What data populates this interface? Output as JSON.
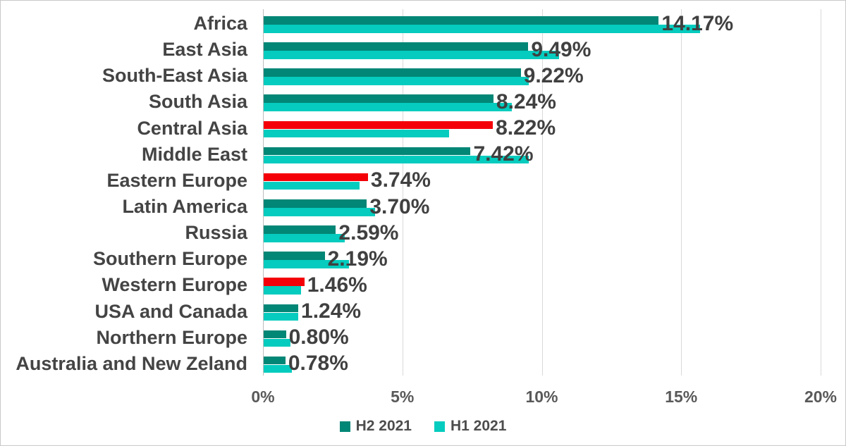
{
  "chart_data": {
    "type": "bar",
    "orientation": "horizontal",
    "title": "",
    "categories": [
      "Africa",
      "East Asia",
      "South-East Asia",
      "South Asia",
      "Central Asia",
      "Middle East",
      "Eastern Europe",
      "Latin America",
      "Russia",
      "Southern Europe",
      "Western Europe",
      "USA and Canada",
      "Northern Europe",
      "Australia and New Zeland"
    ],
    "series": [
      {
        "name": "H2 2021",
        "color": "#028676",
        "values": [
          14.17,
          9.49,
          9.22,
          8.24,
          8.22,
          7.42,
          3.74,
          3.7,
          2.59,
          2.19,
          1.46,
          1.24,
          0.8,
          0.78
        ],
        "data_labels": [
          "14.17%",
          "9.49%",
          "9.22%",
          "8.24%",
          "8.22%",
          "7.42%",
          "3.74%",
          "3.70%",
          "2.59%",
          "2.19%",
          "1.46%",
          "1.24%",
          "0.80%",
          "0.78%"
        ]
      },
      {
        "name": "H1 2021",
        "color": "#05ccbe",
        "values": [
          15.65,
          10.6,
          9.5,
          8.9,
          6.65,
          9.5,
          3.45,
          4.0,
          2.9,
          3.05,
          1.35,
          1.25,
          0.95,
          1.0
        ]
      }
    ],
    "highlight": {
      "color": "#f40008",
      "series": "H2 2021",
      "categories": [
        "Central Asia",
        "Eastern Europe",
        "Western Europe"
      ]
    },
    "x_axis": {
      "tick_labels": [
        "0%",
        "5%",
        "10%",
        "15%",
        "20%"
      ],
      "tick_values": [
        0,
        5,
        10,
        15,
        20
      ],
      "max": 20
    },
    "legend": {
      "position": "bottom",
      "items": [
        {
          "label": "H2 2021"
        },
        {
          "label": "H1 2021"
        }
      ]
    },
    "grid": "vertical",
    "text_colors": {
      "data_label": "#404040",
      "category_label": "#444444",
      "axis_label": "#595959",
      "legend_label": "#4d4d4d"
    }
  }
}
